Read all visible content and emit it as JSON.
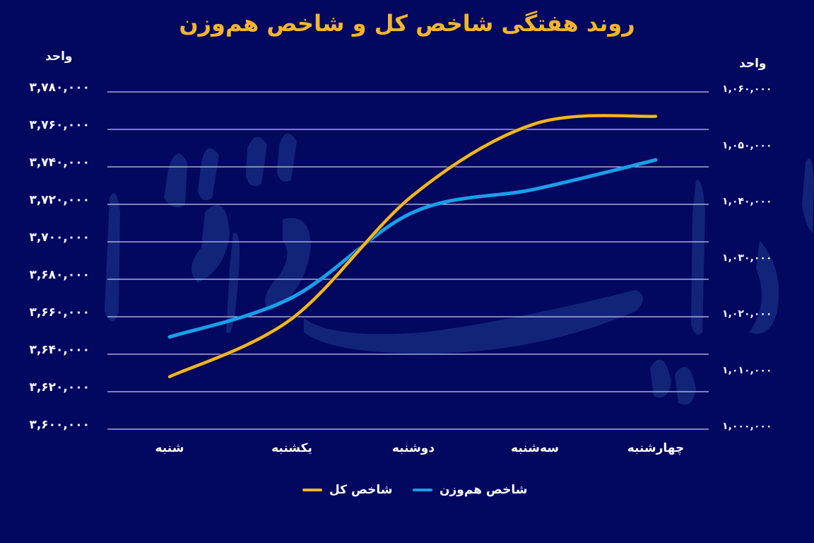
{
  "title": "روند هفتگی شاخص کل و شاخص هم‌وزن",
  "colors": {
    "background": "#020760",
    "title": "#f7b52a",
    "gold_series": "#f0b429",
    "blue_series": "#1a9fe8",
    "grid": "#c8cbe8",
    "watermark": "#1f3d8f"
  },
  "axes": {
    "left": {
      "unit": "واحد",
      "ticks": [
        "۳,۷۸۰,۰۰۰",
        "۳,۷۶۰,۰۰۰",
        "۳,۷۴۰,۰۰۰",
        "۳,۷۲۰,۰۰۰",
        "۳,۷۰۰,۰۰۰",
        "۳,۶۸۰,۰۰۰",
        "۳,۶۶۰,۰۰۰",
        "۳,۶۴۰,۰۰۰",
        "۳,۶۲۰,۰۰۰",
        "۳,۶۰۰,۰۰۰"
      ]
    },
    "right": {
      "unit": "واحد",
      "ticks": [
        "۱,۰۶۰,۰۰۰",
        "۱,۰۵۰,۰۰۰",
        "۱,۰۴۰,۰۰۰",
        "۱,۰۳۰,۰۰۰",
        "۱,۰۲۰,۰۰۰",
        "۱,۰۱۰,۰۰۰",
        "۱,۰۰۰,۰۰۰"
      ]
    },
    "x": {
      "labels": [
        "شنبه",
        "یکشنبه",
        "دوشنبه",
        "سه‌شنبه",
        "چهارشنبه"
      ]
    }
  },
  "legend": {
    "gold_label": "شاخص کل",
    "blue_label": "شاخص هم‌وزن"
  },
  "chart_data": {
    "type": "line",
    "title": "روند هفتگی شاخص کل و شاخص هم‌وزن",
    "categories": [
      "شنبه",
      "یکشنبه",
      "دوشنبه",
      "سه‌شنبه",
      "چهارشنبه"
    ],
    "xlabel": "",
    "ylabel_left": "واحد",
    "ylabel_right": "واحد",
    "ylim_left": [
      3600000,
      3780000
    ],
    "ylim_right": [
      1000000,
      1060000
    ],
    "grid": true,
    "legend_position": "bottom",
    "series": [
      {
        "name": "شاخص کل",
        "axis": "left",
        "color": "#f0b429",
        "values": [
          3628000,
          3659000,
          3725000,
          3763000,
          3767000
        ]
      },
      {
        "name": "شاخص هم‌وزن",
        "axis": "right",
        "color": "#1a9fe8",
        "values": [
          1016400,
          1023400,
          1038600,
          1042700,
          1047900
        ]
      }
    ]
  }
}
